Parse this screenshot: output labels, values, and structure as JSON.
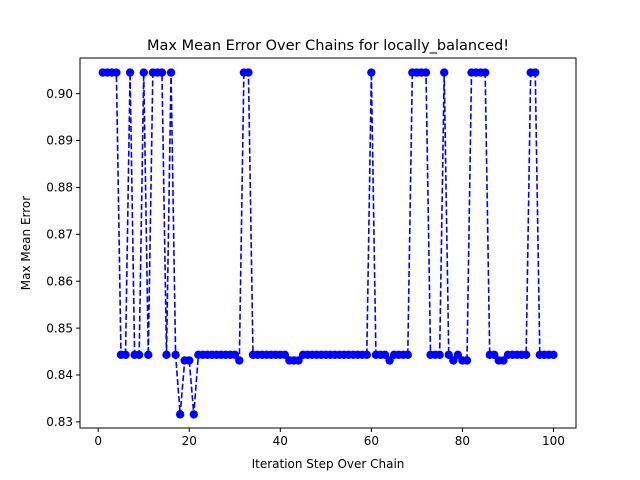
{
  "chart_data": {
    "type": "line",
    "title": "Max Mean Error Over Chains for locally_balanced!",
    "xlabel": "Iteration Step Over Chain",
    "ylabel": "Max Mean Error",
    "xlim": [
      -4,
      104.95
    ],
    "ylim": [
      0.8287,
      0.9076
    ],
    "x_ticks": [
      0,
      20,
      40,
      60,
      80,
      100
    ],
    "x_tick_labels": [
      "0",
      "20",
      "40",
      "60",
      "80",
      "100"
    ],
    "y_ticks": [
      0.83,
      0.84,
      0.85,
      0.86,
      0.87,
      0.88,
      0.89,
      0.9
    ],
    "y_tick_labels": [
      "0.83",
      "0.84",
      "0.85",
      "0.86",
      "0.87",
      "0.88",
      "0.89",
      "0.90"
    ],
    "grid": false,
    "legend": false,
    "series": [
      {
        "color": "#0000ff",
        "line_style": "dashed",
        "marker": "circle",
        "x": [
          1,
          2,
          3,
          4,
          5,
          6,
          7,
          8,
          9,
          10,
          11,
          12,
          13,
          14,
          15,
          16,
          17,
          18,
          19,
          20,
          21,
          22,
          23,
          24,
          25,
          26,
          27,
          28,
          29,
          30,
          31,
          32,
          33,
          34,
          35,
          36,
          37,
          38,
          39,
          40,
          41,
          42,
          43,
          44,
          45,
          46,
          47,
          48,
          49,
          50,
          51,
          52,
          53,
          54,
          55,
          56,
          57,
          58,
          59,
          60,
          61,
          62,
          63,
          64,
          65,
          66,
          67,
          68,
          69,
          70,
          71,
          72,
          73,
          74,
          75,
          76,
          77,
          78,
          79,
          80,
          81,
          82,
          83,
          84,
          85,
          86,
          87,
          88,
          89,
          90,
          91,
          92,
          93,
          94,
          95,
          96,
          97,
          98,
          99,
          100
        ],
        "y": [
          0.9045,
          0.9045,
          0.9045,
          0.9045,
          0.8443,
          0.8443,
          0.9045,
          0.8443,
          0.8443,
          0.9045,
          0.8443,
          0.9045,
          0.9045,
          0.9045,
          0.8443,
          0.9045,
          0.8443,
          0.8316,
          0.8431,
          0.8431,
          0.8316,
          0.8443,
          0.8443,
          0.8443,
          0.8443,
          0.8443,
          0.8443,
          0.8443,
          0.8443,
          0.8443,
          0.8431,
          0.9045,
          0.9045,
          0.8443,
          0.8443,
          0.8443,
          0.8443,
          0.8443,
          0.8443,
          0.8443,
          0.8443,
          0.8431,
          0.8431,
          0.8431,
          0.8443,
          0.8443,
          0.8443,
          0.8443,
          0.8443,
          0.8443,
          0.8443,
          0.8443,
          0.8443,
          0.8443,
          0.8443,
          0.8443,
          0.8443,
          0.8443,
          0.8443,
          0.9045,
          0.8443,
          0.8443,
          0.8443,
          0.8431,
          0.8443,
          0.8443,
          0.8443,
          0.8443,
          0.9045,
          0.9045,
          0.9045,
          0.9045,
          0.8443,
          0.8443,
          0.8443,
          0.9045,
          0.8443,
          0.8431,
          0.8443,
          0.8431,
          0.8431,
          0.9045,
          0.9045,
          0.9045,
          0.9045,
          0.8443,
          0.8443,
          0.8431,
          0.8431,
          0.8443,
          0.8443,
          0.8443,
          0.8443,
          0.8443,
          0.9045,
          0.9045,
          0.8443,
          0.8443,
          0.8443,
          0.8443
        ]
      }
    ]
  }
}
